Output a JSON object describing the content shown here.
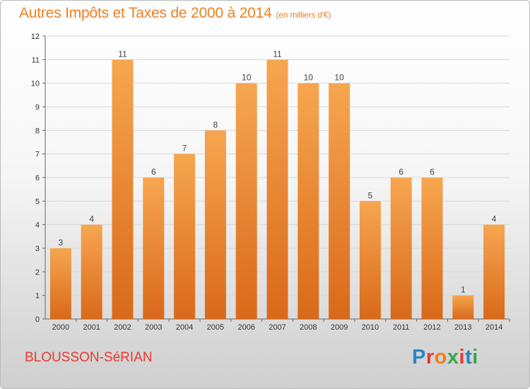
{
  "header": {
    "title": "Autres Impôts et Taxes de 2000 à 2014",
    "subtitle": "(en milliers d'€)"
  },
  "footer": {
    "commune": "BLOUSSON-SéRIAN",
    "logo_letters": [
      "P",
      "r",
      "o",
      "x",
      "i",
      "t",
      "i"
    ]
  },
  "colors": {
    "accent": "#ef7f22",
    "commune": "#e8392f",
    "bar_light": "#f7a650",
    "bar_dark": "#d9691a",
    "logo": [
      "#2d84c6",
      "#e8392f",
      "#ef7f22",
      "#3aa648",
      "#e8392f",
      "#2d84c6",
      "#3aa648"
    ]
  },
  "chart_data": {
    "type": "bar",
    "title": "Autres Impôts et Taxes de 2000 à 2014",
    "subtitle": "(en milliers d'€)",
    "categories": [
      "2000",
      "2001",
      "2002",
      "2003",
      "2004",
      "2005",
      "2006",
      "2007",
      "2008",
      "2009",
      "2010",
      "2011",
      "2012",
      "2013",
      "2014"
    ],
    "values": [
      3,
      4,
      11,
      6,
      7,
      8,
      10,
      11,
      10,
      10,
      5,
      6,
      6,
      1,
      4
    ],
    "xlabel": "",
    "ylabel": "",
    "ylim": [
      0,
      12
    ],
    "yticks": [
      0,
      1,
      2,
      3,
      4,
      5,
      6,
      7,
      8,
      9,
      10,
      11,
      12
    ],
    "grid": true
  }
}
